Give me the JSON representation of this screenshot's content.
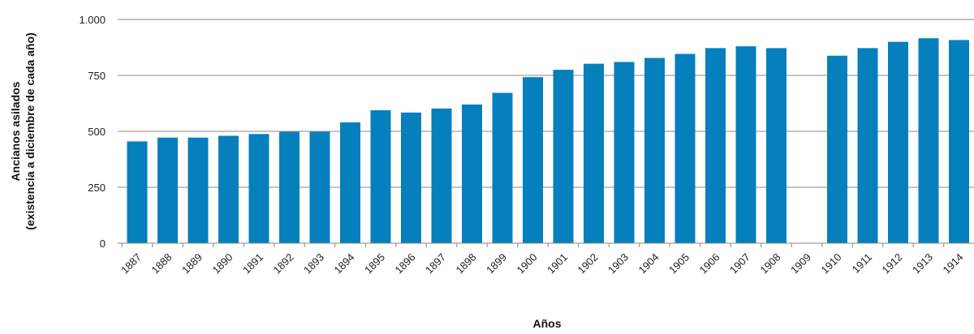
{
  "chart_data": {
    "type": "bar",
    "xlabel": "Años",
    "ylabel_line1": "Ancianos asilados",
    "ylabel_line2": "(existencia a diciembre de cada año)",
    "ylim": [
      0,
      1000
    ],
    "yticks": [
      0,
      250,
      500,
      750,
      1000
    ],
    "ytick_labels": [
      "0",
      "250",
      "500",
      "750",
      "1.000"
    ],
    "grid": "horizontal",
    "bar_color": "#0580bd",
    "categories": [
      "1887",
      "1888",
      "1889",
      "1890",
      "1891",
      "1892",
      "1893",
      "1894",
      "1895",
      "1896",
      "1897",
      "1898",
      "1899",
      "1900",
      "1901",
      "1902",
      "1903",
      "1904",
      "1905",
      "1906",
      "1907",
      "1908",
      "1909",
      "1910",
      "1911",
      "1912",
      "1913",
      "1914"
    ],
    "values": [
      455,
      472,
      472,
      480,
      488,
      498,
      498,
      540,
      594,
      584,
      602,
      620,
      672,
      742,
      775,
      802,
      810,
      828,
      846,
      872,
      880,
      872,
      null,
      838,
      872,
      900,
      916,
      908
    ]
  }
}
